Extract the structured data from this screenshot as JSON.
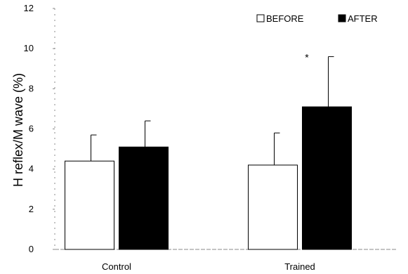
{
  "chart_data": {
    "type": "bar",
    "categories": [
      "Control",
      "Trained"
    ],
    "series": [
      {
        "name": "BEFORE",
        "values": [
          4.4,
          4.2
        ],
        "errors": [
          1.3,
          1.6
        ],
        "fill": "#ffffff",
        "stroke": "#000000"
      },
      {
        "name": "AFTER",
        "values": [
          5.1,
          7.1
        ],
        "errors": [
          1.3,
          2.5
        ],
        "fill": "#000000",
        "stroke": "#000000"
      }
    ],
    "ylabel": "H reflex/M wave (%)",
    "ylim": [
      0,
      12
    ],
    "yticks": [
      0,
      2,
      4,
      6,
      8,
      10,
      12
    ],
    "legend": {
      "position": "top-right"
    },
    "annotations": [
      {
        "text": "*",
        "category": "Trained",
        "y": 9.5
      }
    ],
    "grid": false
  }
}
